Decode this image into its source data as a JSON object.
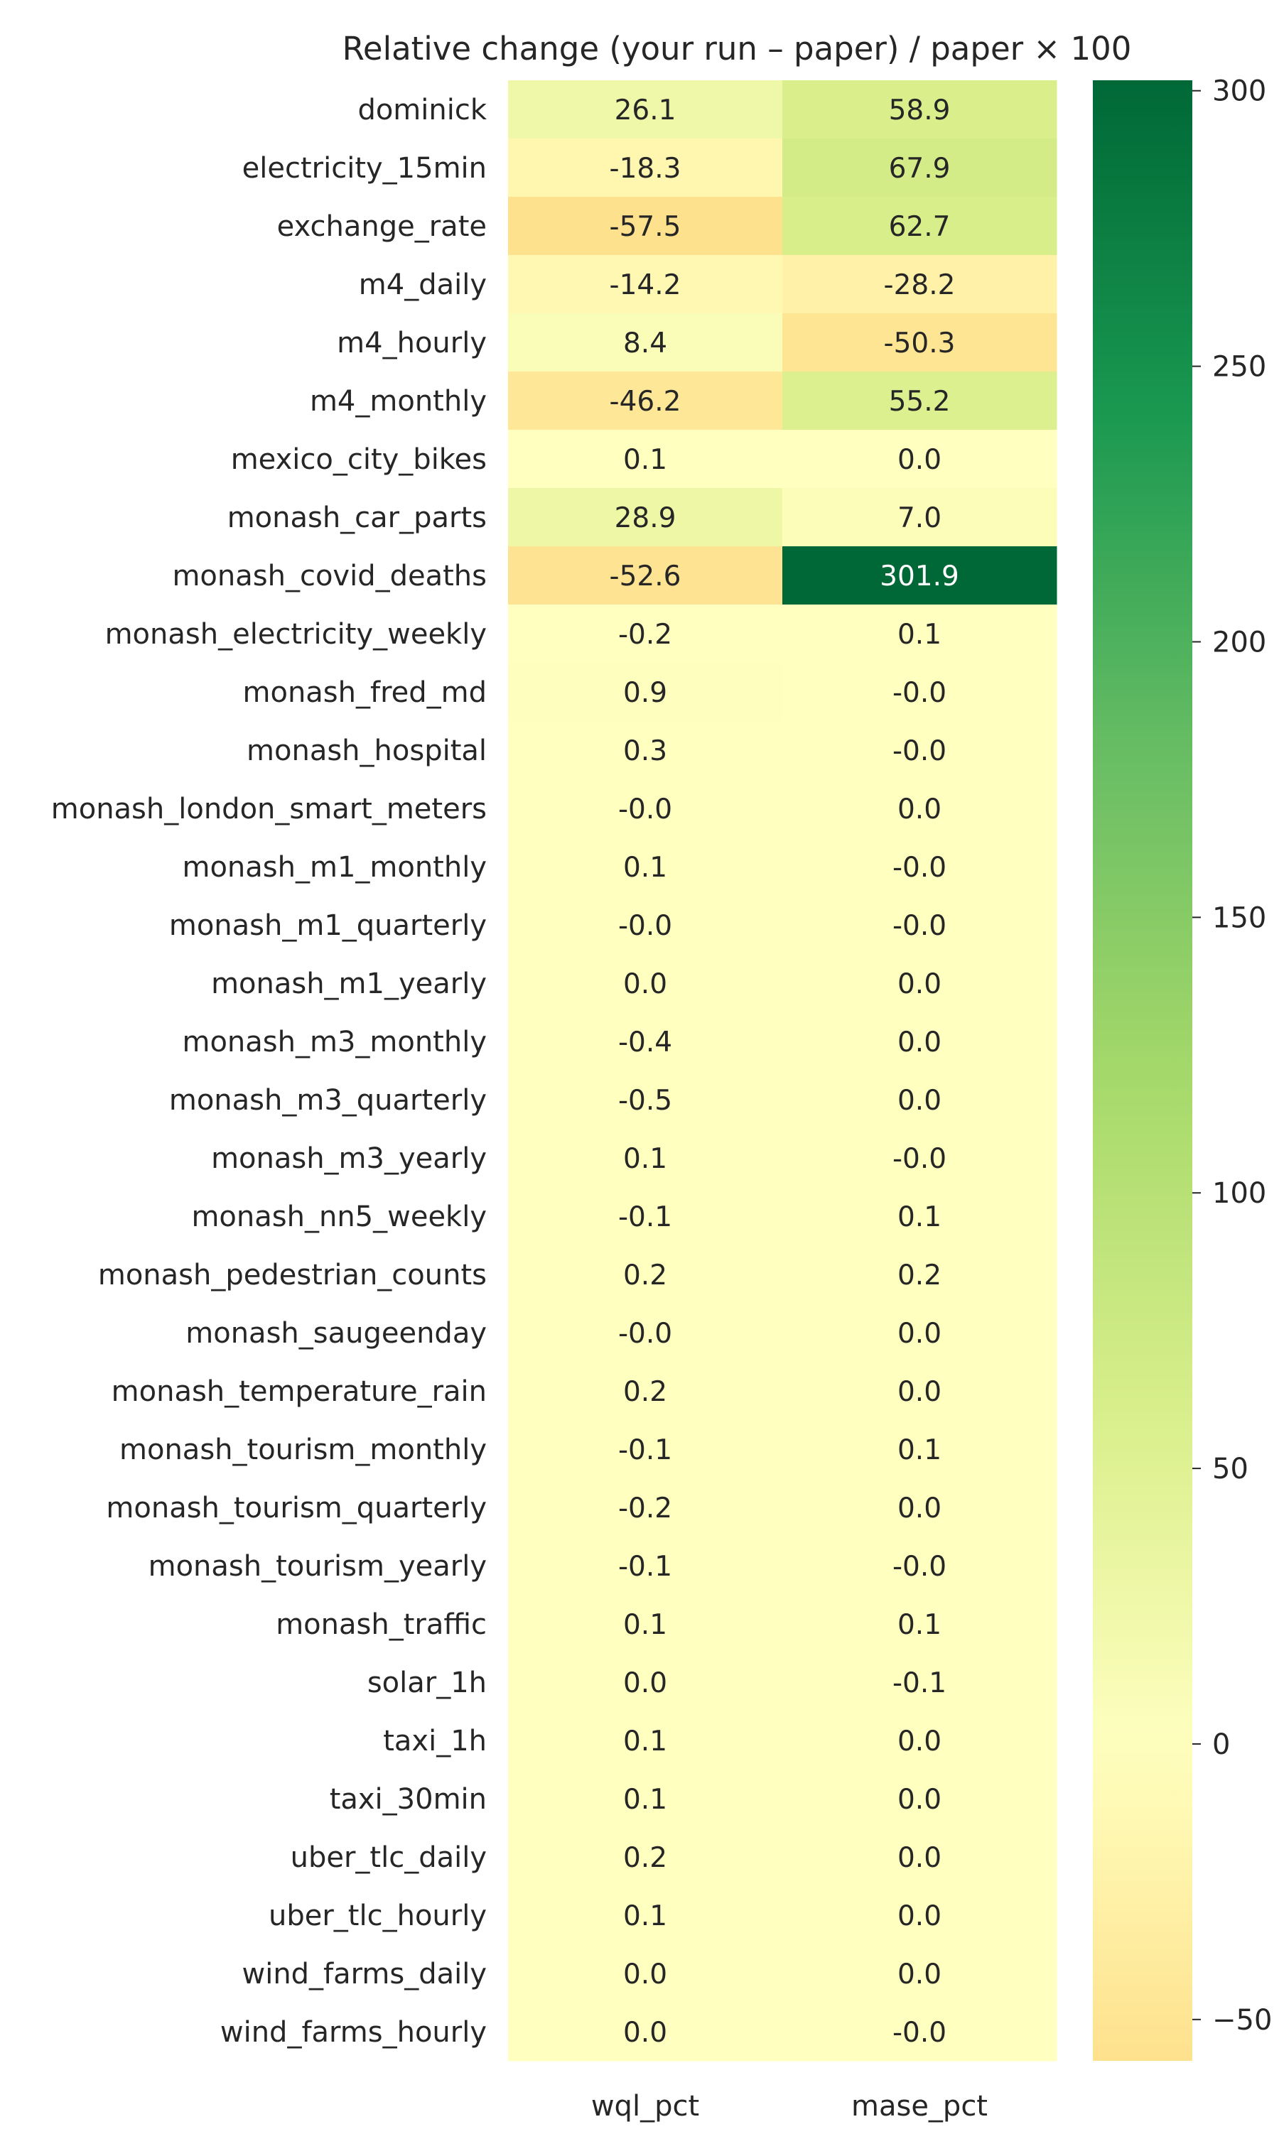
{
  "chart_data": {
    "type": "heatmap",
    "title": "Relative change (your run – paper) / paper × 100",
    "columns": [
      "wql_pct",
      "mase_pct"
    ],
    "rows": [
      "dominick",
      "electricity_15min",
      "exchange_rate",
      "m4_daily",
      "m4_hourly",
      "m4_monthly",
      "mexico_city_bikes",
      "monash_car_parts",
      "monash_covid_deaths",
      "monash_electricity_weekly",
      "monash_fred_md",
      "monash_hospital",
      "monash_london_smart_meters",
      "monash_m1_monthly",
      "monash_m1_quarterly",
      "monash_m1_yearly",
      "monash_m3_monthly",
      "monash_m3_quarterly",
      "monash_m3_yearly",
      "monash_nn5_weekly",
      "monash_pedestrian_counts",
      "monash_saugeenday",
      "monash_temperature_rain",
      "monash_tourism_monthly",
      "monash_tourism_quarterly",
      "monash_tourism_yearly",
      "monash_traffic",
      "solar_1h",
      "taxi_1h",
      "taxi_30min",
      "uber_tlc_daily",
      "uber_tlc_hourly",
      "wind_farms_daily",
      "wind_farms_hourly"
    ],
    "values": [
      [
        26.1,
        58.9
      ],
      [
        -18.3,
        67.9
      ],
      [
        -57.5,
        62.7
      ],
      [
        -14.2,
        -28.2
      ],
      [
        8.4,
        -50.3
      ],
      [
        -46.2,
        55.2
      ],
      [
        0.1,
        0.0
      ],
      [
        28.9,
        7.0
      ],
      [
        -52.6,
        301.9
      ],
      [
        -0.2,
        0.1
      ],
      [
        0.9,
        -0.0
      ],
      [
        0.3,
        -0.0
      ],
      [
        -0.0,
        0.0
      ],
      [
        0.1,
        -0.0
      ],
      [
        -0.0,
        -0.0
      ],
      [
        0.0,
        0.0
      ],
      [
        -0.4,
        0.0
      ],
      [
        -0.5,
        0.0
      ],
      [
        0.1,
        -0.0
      ],
      [
        -0.1,
        0.1
      ],
      [
        0.2,
        0.2
      ],
      [
        -0.0,
        0.0
      ],
      [
        0.2,
        0.0
      ],
      [
        -0.1,
        0.1
      ],
      [
        -0.2,
        0.0
      ],
      [
        -0.1,
        -0.0
      ],
      [
        0.1,
        0.1
      ],
      [
        0.0,
        -0.1
      ],
      [
        0.1,
        0.0
      ],
      [
        0.1,
        0.0
      ],
      [
        0.2,
        0.0
      ],
      [
        0.1,
        0.0
      ],
      [
        0.0,
        0.0
      ],
      [
        0.0,
        -0.0
      ]
    ],
    "labels": [
      [
        "26.1",
        "58.9"
      ],
      [
        "-18.3",
        "67.9"
      ],
      [
        "-57.5",
        "62.7"
      ],
      [
        "-14.2",
        "-28.2"
      ],
      [
        "8.4",
        "-50.3"
      ],
      [
        "-46.2",
        "55.2"
      ],
      [
        "0.1",
        "0.0"
      ],
      [
        "28.9",
        "7.0"
      ],
      [
        "-52.6",
        "301.9"
      ],
      [
        "-0.2",
        "0.1"
      ],
      [
        "0.9",
        "-0.0"
      ],
      [
        "0.3",
        "-0.0"
      ],
      [
        "-0.0",
        "0.0"
      ],
      [
        "0.1",
        "-0.0"
      ],
      [
        "-0.0",
        "-0.0"
      ],
      [
        "0.0",
        "0.0"
      ],
      [
        "-0.4",
        "0.0"
      ],
      [
        "-0.5",
        "0.0"
      ],
      [
        "0.1",
        "-0.0"
      ],
      [
        "-0.1",
        "0.1"
      ],
      [
        "0.2",
        "0.2"
      ],
      [
        "-0.0",
        "0.0"
      ],
      [
        "0.2",
        "0.0"
      ],
      [
        "-0.1",
        "0.1"
      ],
      [
        "-0.2",
        "0.0"
      ],
      [
        "-0.1",
        "-0.0"
      ],
      [
        "0.1",
        "0.1"
      ],
      [
        "0.0",
        "-0.1"
      ],
      [
        "0.1",
        "0.0"
      ],
      [
        "0.1",
        "0.0"
      ],
      [
        "0.2",
        "0.0"
      ],
      [
        "0.1",
        "0.0"
      ],
      [
        "0.0",
        "0.0"
      ],
      [
        "0.0",
        "-0.0"
      ]
    ],
    "colorbar": {
      "vmin": -57.5,
      "vmax": 301.9,
      "center": 0,
      "ticks": [
        -50,
        0,
        50,
        100,
        150,
        200,
        250,
        300
      ],
      "tick_labels": [
        "−50",
        "0",
        "50",
        "100",
        "150",
        "200",
        "250",
        "300"
      ],
      "colormap": "RdYlGn (centered at 0)"
    },
    "grid": false,
    "legend": "colorbar-right"
  }
}
